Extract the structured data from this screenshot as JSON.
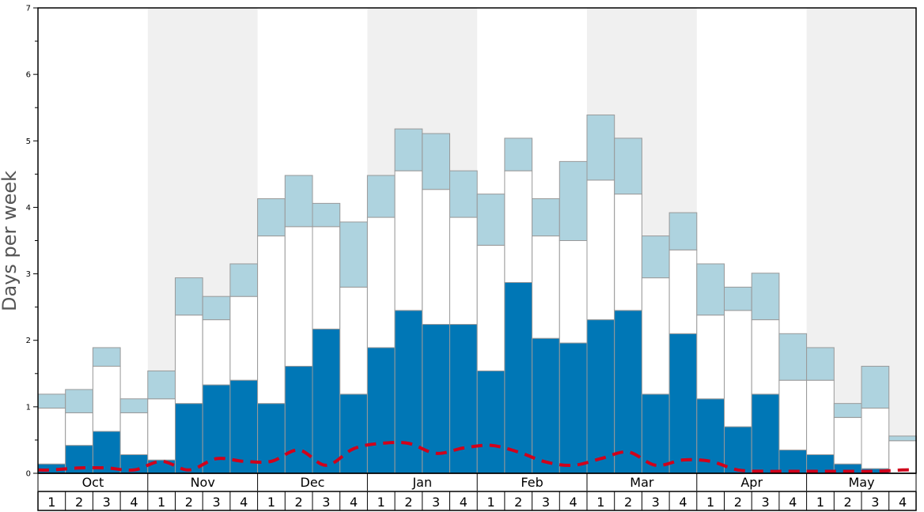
{
  "colors": {
    "shade": "#f0f0f0",
    "seg_bottom": "#0077b6",
    "seg_middle": "#ffffff",
    "seg_top": "#aed3df",
    "bar_stroke": "#999999",
    "line": "#d0021b"
  },
  "chart_data": {
    "type": "bar",
    "stacked": true,
    "ylabel": "Days per week",
    "ylim": [
      0,
      7
    ],
    "yticks": [
      0,
      1,
      2,
      3,
      4,
      5,
      6,
      7
    ],
    "months": [
      "Oct",
      "Nov",
      "Dec",
      "Jan",
      "Feb",
      "Mar",
      "Apr",
      "May"
    ],
    "weeks": [
      "1",
      "2",
      "3",
      "4"
    ],
    "shaded_months": [
      "Nov",
      "Jan",
      "Mar",
      "May"
    ],
    "series": [
      {
        "values": [
          0.14,
          0.42,
          0.63,
          0.28,
          0.2,
          1.05,
          1.33,
          1.4,
          1.05,
          1.61,
          2.17,
          1.19,
          1.89,
          2.45,
          2.24,
          2.24,
          1.54,
          2.87,
          2.03,
          1.96,
          2.31,
          2.45,
          1.19,
          2.1,
          1.12,
          0.7,
          1.19,
          0.35,
          0.28,
          0.14,
          0.07,
          0.0
        ]
      },
      {
        "values": [
          0.84,
          0.49,
          0.98,
          0.63,
          0.92,
          1.33,
          0.98,
          1.26,
          2.52,
          2.1,
          1.54,
          1.61,
          1.96,
          2.1,
          2.03,
          1.61,
          1.89,
          1.68,
          1.54,
          1.54,
          2.1,
          1.75,
          1.75,
          1.26,
          1.26,
          1.75,
          1.12,
          1.05,
          1.12,
          0.7,
          0.91,
          0.49
        ]
      },
      {
        "values": [
          0.21,
          0.35,
          0.28,
          0.21,
          0.42,
          0.56,
          0.35,
          0.49,
          0.56,
          0.77,
          0.35,
          0.98,
          0.63,
          0.63,
          0.84,
          0.7,
          0.77,
          0.49,
          0.56,
          1.19,
          0.98,
          0.84,
          0.63,
          0.56,
          0.77,
          0.35,
          0.7,
          0.7,
          0.49,
          0.21,
          0.63,
          0.07
        ]
      }
    ],
    "line": {
      "values": [
        0.05,
        0.08,
        0.08,
        0.05,
        0.18,
        0.05,
        0.22,
        0.18,
        0.18,
        0.35,
        0.12,
        0.37,
        0.45,
        0.45,
        0.3,
        0.38,
        0.42,
        0.32,
        0.17,
        0.12,
        0.22,
        0.32,
        0.12,
        0.2,
        0.18,
        0.05,
        0.03,
        0.03,
        0.03,
        0.03,
        0.03,
        0.05
      ]
    }
  }
}
